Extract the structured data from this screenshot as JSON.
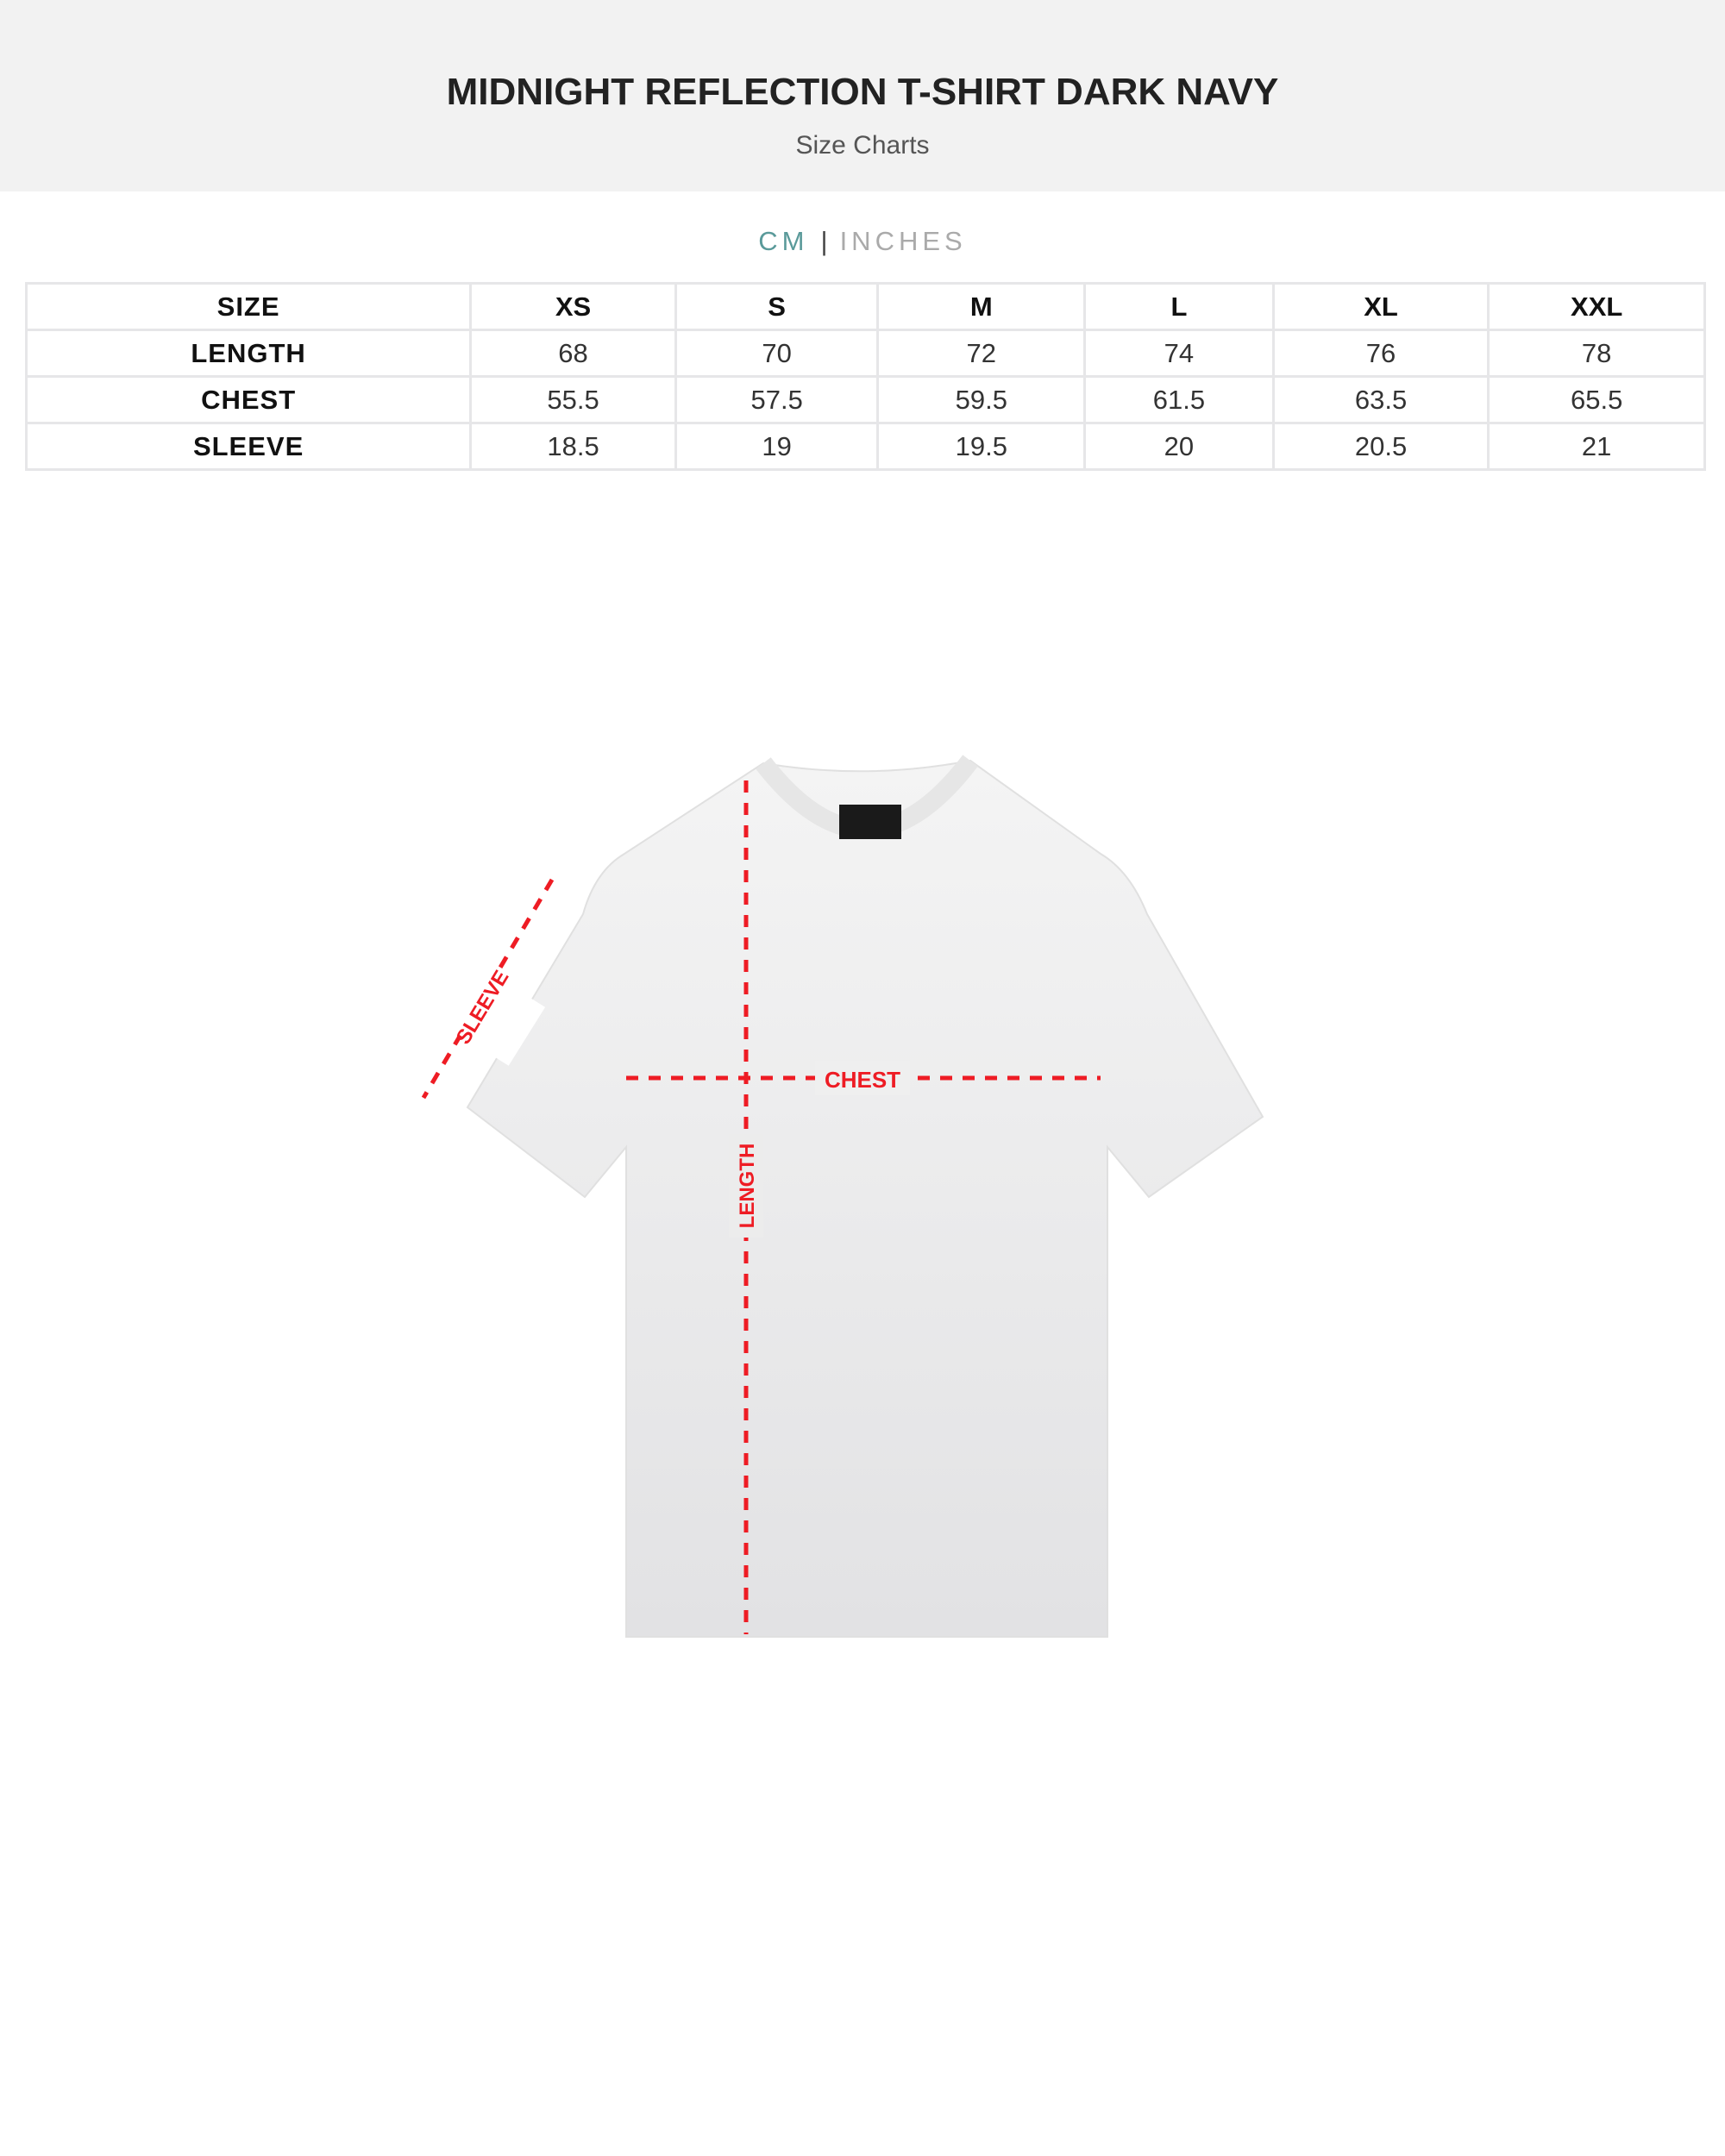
{
  "header": {
    "title": "MIDNIGHT REFLECTION T-SHIRT DARK NAVY",
    "subtitle": "Size Charts"
  },
  "units": {
    "cm": "CM",
    "separator": "|",
    "inches": "INCHES",
    "selected": "CM"
  },
  "table": {
    "headers": [
      "SIZE",
      "XS",
      "S",
      "M",
      "L",
      "XL",
      "XXL"
    ],
    "rows": [
      [
        "LENGTH",
        "68",
        "70",
        "72",
        "74",
        "76",
        "78"
      ],
      [
        "CHEST",
        "55.5",
        "57.5",
        "59.5",
        "61.5",
        "63.5",
        "65.5"
      ],
      [
        "SLEEVE",
        "18.5",
        "19",
        "19.5",
        "20",
        "20.5",
        "21"
      ]
    ]
  },
  "diagram": {
    "sleeve": "SLEEVE",
    "chest": "CHEST",
    "length": "LENGTH",
    "line_color": "#ee1c24"
  }
}
